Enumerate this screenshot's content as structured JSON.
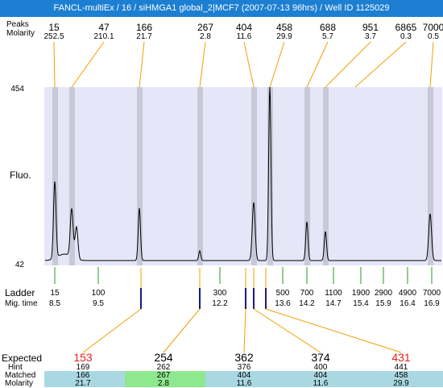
{
  "window": {
    "title": "FANCL-multiEx / 16 / siHMGA1 global_2|MCF7 (2007-07-13 96hrs) / Well ID 1125029"
  },
  "top_labels": {
    "header1": "Peaks",
    "header2": "Molarity"
  },
  "top_peaks": [
    {
      "size": "15",
      "molarity": "252.5"
    },
    {
      "size": "47",
      "molarity": "210.1"
    },
    {
      "size": "166",
      "molarity": "21.7"
    },
    {
      "size": "267",
      "molarity": "2.8"
    },
    {
      "size": "404",
      "molarity": "11.6"
    },
    {
      "size": "458",
      "molarity": "29.9"
    },
    {
      "size": "688",
      "molarity": "5.7"
    },
    {
      "size": "951",
      "molarity": "3.7"
    },
    {
      "size": "6865",
      "molarity": "0.3"
    },
    {
      "size": "7000",
      "molarity": "0.5"
    }
  ],
  "y_axis": {
    "max_label": "454",
    "min_label": "42",
    "label": "Fluo."
  },
  "ladder": {
    "label1": "Ladder",
    "label2": "Mig. time",
    "items": [
      {
        "size": "15",
        "time": "8.5"
      },
      {
        "size": "100",
        "time": "9.5"
      },
      {
        "size": "300",
        "time": "12.2"
      },
      {
        "size": "500",
        "time": "13.6"
      },
      {
        "size": "700",
        "time": "14.2"
      },
      {
        "size": "1100",
        "time": "14.7"
      },
      {
        "size": "1900",
        "time": "15.4"
      },
      {
        "size": "2900",
        "time": "15.9"
      },
      {
        "size": "4900",
        "time": "16.4"
      },
      {
        "size": "7000",
        "time": "16.9"
      }
    ]
  },
  "expected_table": {
    "labels": {
      "expected": "Expected",
      "hint": "Hint",
      "matched": "Matched",
      "molarity": "Molarity"
    },
    "columns": [
      {
        "expected": "153",
        "hint": "169",
        "matched": "166",
        "molarity": "21.7",
        "expected_color": "#e8201a",
        "row_color": "#a9d8e2"
      },
      {
        "expected": "254",
        "hint": "262",
        "matched": "267",
        "molarity": "2.8",
        "expected_color": "#000000",
        "row_color": "#8ee88e"
      },
      {
        "expected": "362",
        "hint": "376",
        "matched": "404",
        "molarity": "11.6",
        "expected_color": "#000000",
        "row_color": "#a9d8e2"
      },
      {
        "expected": "374",
        "hint": "400",
        "matched": "404",
        "molarity": "11.6",
        "expected_color": "#000000",
        "row_color": "#a9d8e2"
      },
      {
        "expected": "431",
        "hint": "441",
        "matched": "458",
        "molarity": "29.9",
        "expected_color": "#e8201a",
        "row_color": "#a9d8e2"
      }
    ]
  },
  "colors": {
    "title_bg": "#1d7fd1",
    "plot_bg": "#e6e6f8",
    "peak_band": "#c8c8d8",
    "leader_orange": "#f0a000",
    "ladder_green": "#2a9a2a",
    "tick_navy": "#1a1a80"
  }
}
